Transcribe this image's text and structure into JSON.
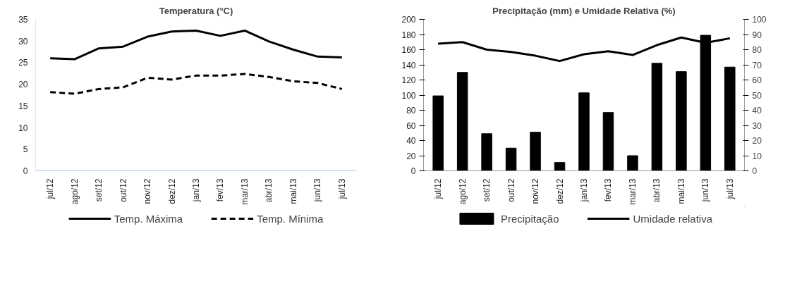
{
  "chart_data": [
    {
      "type": "line",
      "title": "Temperatura (°C)",
      "categories": [
        "jul/12",
        "ago/12",
        "set/12",
        "out/12",
        "nov/12",
        "dez/12",
        "jan/13",
        "fev/13",
        "mar/13",
        "abr/13",
        "mai/13",
        "jun/13",
        "jul/13"
      ],
      "series": [
        {
          "name": "Temp. Máxima",
          "color": "#000000",
          "line_style": "solid",
          "values": [
            26,
            25.8,
            28.3,
            28.7,
            31,
            32.2,
            32.4,
            31.2,
            32.4,
            29.9,
            28,
            26.4,
            26.2
          ]
        },
        {
          "name": "Temp. Mínima",
          "color": "#000000",
          "line_style": "dashed",
          "values": [
            18.2,
            17.8,
            18.9,
            19.3,
            21.5,
            21.1,
            22,
            22,
            22.4,
            21.7,
            20.7,
            20.3,
            18.9
          ]
        }
      ],
      "ylim": [
        0,
        35
      ],
      "yticks": [
        0,
        5,
        10,
        15,
        20,
        25,
        30,
        35
      ],
      "grid": false,
      "legend": "bottom"
    },
    {
      "type": "bar",
      "title": "Precipitação (mm) e Umidade Relativa (%)",
      "categories": [
        "jul/12",
        "ago/12",
        "set/12",
        "out/12",
        "nov/12",
        "dez/12",
        "jan/13",
        "fev/13",
        "mar/13",
        "abr/13",
        "mai/13",
        "jun/13",
        "jul/13"
      ],
      "series": [
        {
          "name": "Precipitação",
          "type": "bar",
          "color": "#000000",
          "values": [
            99,
            130,
            49,
            30,
            51,
            11,
            103,
            77,
            20,
            142,
            131,
            179,
            137
          ]
        },
        {
          "name": "Umidade relativa",
          "type": "line",
          "axis": "y2",
          "color": "#000000",
          "values": [
            84,
            85,
            80,
            78.5,
            76,
            72.5,
            77,
            79,
            76.5,
            83,
            88,
            84.5,
            87.5
          ]
        }
      ],
      "ylim": [
        0,
        200
      ],
      "yticks": [
        0,
        20,
        40,
        60,
        80,
        100,
        120,
        140,
        160,
        180,
        200
      ],
      "y2lim": [
        0,
        100
      ],
      "y2ticks": [
        0,
        10,
        20,
        30,
        40,
        50,
        60,
        70,
        80,
        90,
        100
      ],
      "grid": false,
      "legend": "bottom"
    }
  ]
}
